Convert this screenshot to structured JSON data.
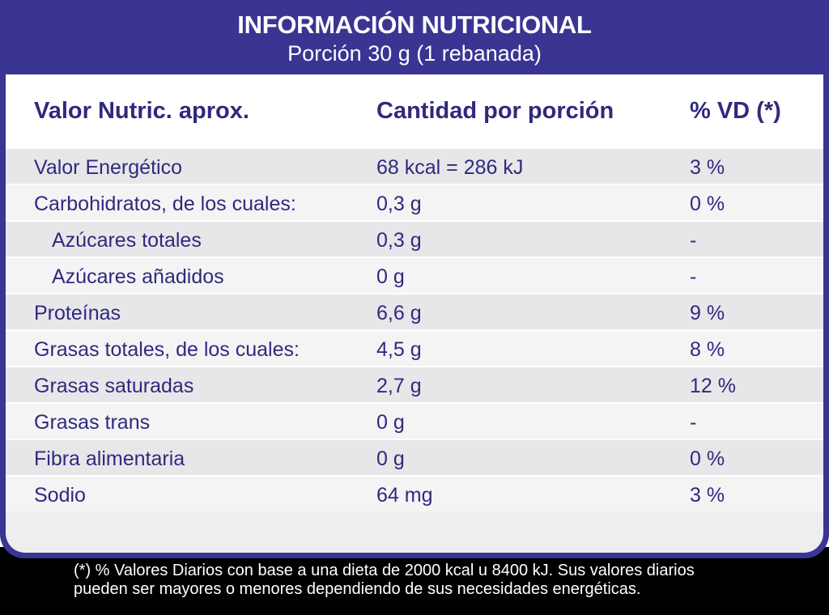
{
  "header": {
    "title": "INFORMACIÓN NUTRICIONAL",
    "subtitle": "Porción 30 g (1 rebanada)"
  },
  "columns": {
    "nutrient": "Valor Nutric. aprox.",
    "amount": "Cantidad por porción",
    "dv": "% VD (*)"
  },
  "rows": [
    {
      "name": "Valor Energético",
      "amount": "68 kcal = 286 kJ",
      "dv": "3 %"
    },
    {
      "name": "Carbohidratos, de los cuales:",
      "amount": "0,3 g",
      "dv": "0 %"
    },
    {
      "name": "Azúcares totales",
      "amount": "0,3 g",
      "dv": "-"
    },
    {
      "name": "Azúcares añadidos",
      "amount": "0 g",
      "dv": "-"
    },
    {
      "name": "Proteínas",
      "amount": "6,6 g",
      "dv": "9 %"
    },
    {
      "name": "Grasas totales, de los cuales:",
      "amount": "4,5 g",
      "dv": "8 %"
    },
    {
      "name": "Grasas saturadas",
      "amount": "2,7 g",
      "dv": "12 %"
    },
    {
      "name": "Grasas trans",
      "amount": "0 g",
      "dv": "-"
    },
    {
      "name": "Fibra alimentaria",
      "amount": "0 g",
      "dv": "0 %"
    },
    {
      "name": "Sodio",
      "amount": "64 mg",
      "dv": "3 %"
    }
  ],
  "footnote": {
    "line1": "(*) % Valores Diarios con base a una dieta de 2000 kcal u 8400 kJ. Sus valores diarios",
    "line2": "pueden ser mayores o menores dependiendo de sus necesidades energéticas."
  },
  "colors": {
    "frame": "#3a3593",
    "text": "#2f2a7d",
    "row_shade": "#e7e7e9",
    "footer": "#000000"
  }
}
